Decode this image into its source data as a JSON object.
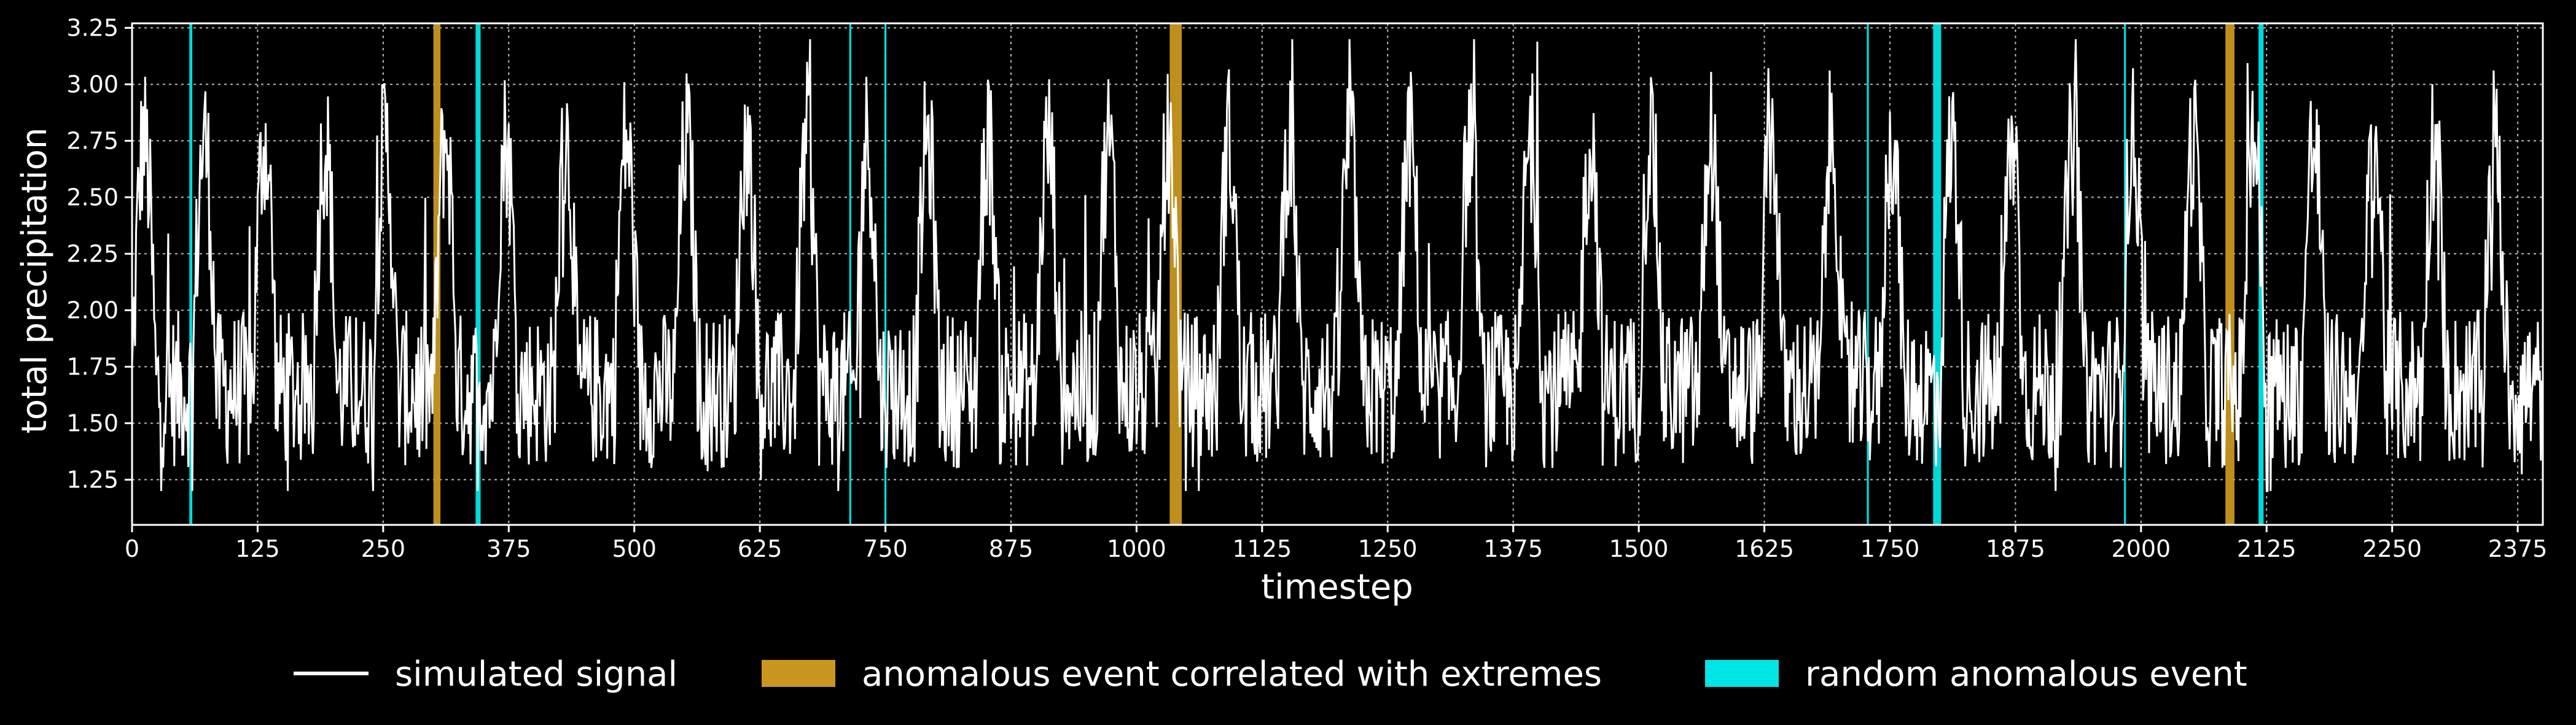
{
  "chart_data": {
    "type": "line",
    "title": "",
    "xlabel": "timestep",
    "ylabel": "total precipitation",
    "xlim": [
      0,
      2400
    ],
    "ylim": [
      1.05,
      3.27
    ],
    "x_ticks": [
      0,
      125,
      250,
      375,
      500,
      625,
      750,
      875,
      1000,
      1125,
      1250,
      1375,
      1500,
      1625,
      1750,
      1875,
      2000,
      2125,
      2250,
      2375
    ],
    "y_ticks": [
      1.25,
      1.5,
      1.75,
      2.0,
      2.25,
      2.5,
      2.75,
      3.0,
      3.25
    ],
    "grid": true,
    "legend_position": "bottom-center",
    "background": "#000000",
    "series": [
      {
        "name": "simulated signal",
        "kind": "line",
        "color": "#ffffff",
        "n_points": 2400,
        "period": 60,
        "baseline": 1.65,
        "peak": 2.75,
        "min": 1.2,
        "max": 3.2
      }
    ],
    "correlated_events": {
      "name": "anomalous event correlated with extremes",
      "color": "#c9971f",
      "intervals": [
        [
          300,
          307
        ],
        [
          1033,
          1045
        ],
        [
          2084,
          2093
        ]
      ]
    },
    "random_events": {
      "name": "random anomalous event",
      "color": "#00e5e5",
      "intervals": [
        [
          57,
          60
        ],
        [
          342,
          347
        ],
        [
          714,
          716
        ],
        [
          749,
          751
        ],
        [
          1727,
          1729
        ],
        [
          1793,
          1801
        ],
        [
          1983,
          1985
        ],
        [
          2117,
          2122
        ]
      ]
    }
  }
}
